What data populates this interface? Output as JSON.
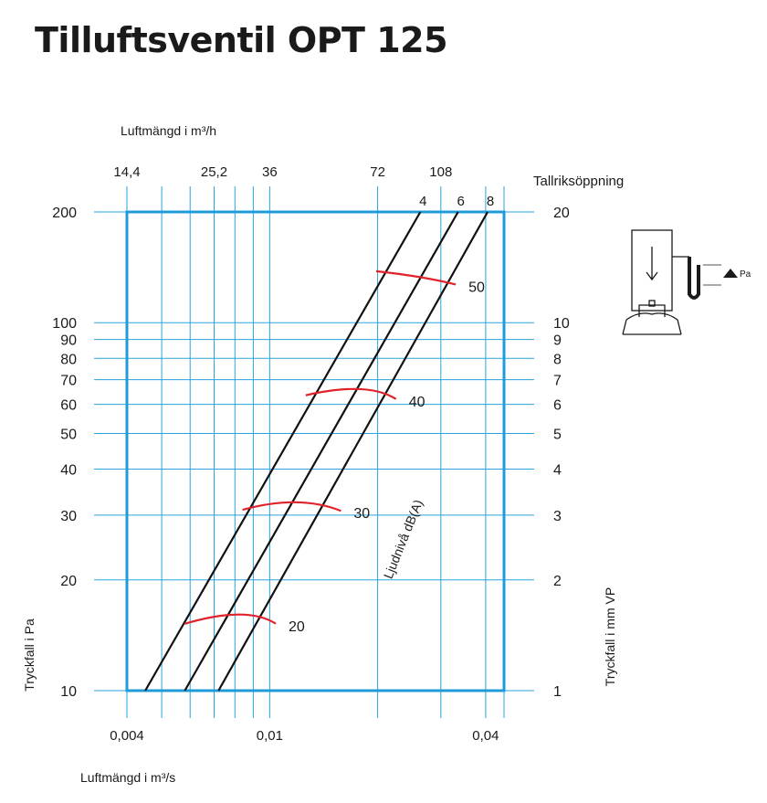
{
  "title": "Tilluftsventil OPT 125",
  "chart_data": {
    "type": "line",
    "x_axis": {
      "label": "Luftmängd i m³/s",
      "scale": "log",
      "range": [
        0.004,
        0.045
      ],
      "ticks": [
        {
          "value": 0.004,
          "label": "0,004"
        },
        {
          "value": 0.01,
          "label": "0,01"
        },
        {
          "value": 0.04,
          "label": "0,04"
        }
      ],
      "gridlines": [
        0.004,
        0.005,
        0.006,
        0.007,
        0.008,
        0.009,
        0.01,
        0.02,
        0.03,
        0.04,
        0.045
      ]
    },
    "x2_axis": {
      "label": "Luftmängd i m³/h",
      "ticks": [
        {
          "value": 14.4,
          "label": "14,4"
        },
        {
          "value": 25.2,
          "label": "25,2"
        },
        {
          "value": 36,
          "label": "36"
        },
        {
          "value": 72,
          "label": "72"
        },
        {
          "value": 108,
          "label": "108"
        }
      ]
    },
    "y_axis": {
      "label": "Tryckfall i Pa",
      "scale": "log",
      "range": [
        10,
        200
      ],
      "ticks": [
        10,
        20,
        30,
        40,
        50,
        60,
        70,
        80,
        90,
        100,
        200
      ]
    },
    "y2_axis": {
      "label": "Tryckfall i mm VP",
      "ticks": [
        1,
        2,
        3,
        4,
        5,
        6,
        7,
        8,
        9,
        10,
        20
      ]
    },
    "series_title": "Tallriksöppning",
    "series": [
      {
        "name": "4",
        "points": [
          [
            0.0045,
            10
          ],
          [
            0.0263,
            200
          ]
        ]
      },
      {
        "name": "6",
        "points": [
          [
            0.0058,
            10
          ],
          [
            0.0335,
            200
          ]
        ]
      },
      {
        "name": "8",
        "points": [
          [
            0.0072,
            10
          ],
          [
            0.0405,
            200
          ]
        ]
      }
    ],
    "sound_curves_label": "Ljudnivå dB(A)",
    "sound_curves": [
      {
        "name": "20",
        "points": [
          [
            0.0058,
            15.2
          ],
          [
            0.0082,
            16.1
          ],
          [
            0.0104,
            15.2
          ]
        ]
      },
      {
        "name": "30",
        "points": [
          [
            0.0084,
            31.0
          ],
          [
            0.0118,
            32.5
          ],
          [
            0.0158,
            30.8
          ]
        ]
      },
      {
        "name": "40",
        "points": [
          [
            0.0126,
            63.5
          ],
          [
            0.0178,
            66.0
          ],
          [
            0.0225,
            62.0
          ]
        ]
      },
      {
        "name": "50",
        "points": [
          [
            0.0198,
            138
          ],
          [
            0.0262,
            133
          ],
          [
            0.033,
            127
          ]
        ]
      }
    ],
    "inset_label": "Pa",
    "colors": {
      "grid": "#2aa3dc",
      "frame": "#1f9bd8",
      "series": "#111111",
      "sound": "#e0232a"
    }
  }
}
